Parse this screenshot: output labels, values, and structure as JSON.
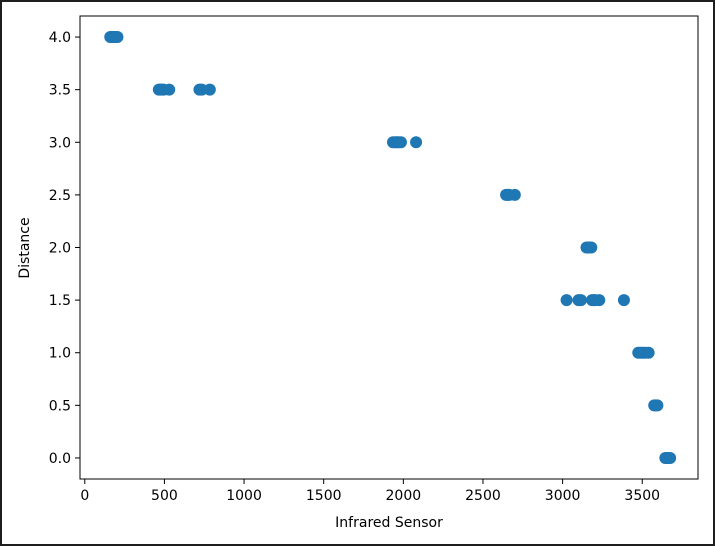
{
  "chart_data": {
    "type": "scatter",
    "title": "",
    "xlabel": "Infrared Sensor",
    "ylabel": "Distance",
    "xlim": [
      -30,
      3850
    ],
    "ylim": [
      -0.2,
      4.2
    ],
    "xticks": [
      0,
      500,
      1000,
      1500,
      2000,
      2500,
      3000,
      3500
    ],
    "yticks": [
      0.0,
      0.5,
      1.0,
      1.5,
      2.0,
      2.5,
      3.0,
      3.5,
      4.0
    ],
    "xtick_labels": [
      "0",
      "500",
      "1000",
      "1500",
      "2000",
      "2500",
      "3000",
      "3500"
    ],
    "ytick_labels": [
      "0.0",
      "0.5",
      "1.0",
      "1.5",
      "2.0",
      "2.5",
      "3.0",
      "3.5",
      "4.0"
    ],
    "grid": false,
    "marker_color": "#1f77b4",
    "series": [
      {
        "points": [
          [
            160,
            4.0
          ],
          [
            170,
            4.0
          ],
          [
            180,
            4.0
          ],
          [
            185,
            4.0
          ],
          [
            195,
            4.0
          ],
          [
            205,
            4.0
          ],
          [
            465,
            3.5
          ],
          [
            475,
            3.5
          ],
          [
            485,
            3.5
          ],
          [
            495,
            3.5
          ],
          [
            530,
            3.5
          ],
          [
            720,
            3.5
          ],
          [
            735,
            3.5
          ],
          [
            785,
            3.5
          ],
          [
            1935,
            3.0
          ],
          [
            1950,
            3.0
          ],
          [
            1960,
            3.0
          ],
          [
            1970,
            3.0
          ],
          [
            1985,
            3.0
          ],
          [
            2080,
            3.0
          ],
          [
            2645,
            2.5
          ],
          [
            2655,
            2.5
          ],
          [
            2665,
            2.5
          ],
          [
            2700,
            2.5
          ],
          [
            3150,
            2.0
          ],
          [
            3160,
            2.0
          ],
          [
            3170,
            2.0
          ],
          [
            3180,
            2.0
          ],
          [
            3025,
            1.5
          ],
          [
            3100,
            1.5
          ],
          [
            3115,
            1.5
          ],
          [
            3185,
            1.5
          ],
          [
            3195,
            1.5
          ],
          [
            3205,
            1.5
          ],
          [
            3230,
            1.5
          ],
          [
            3385,
            1.5
          ],
          [
            3475,
            1.0
          ],
          [
            3490,
            1.0
          ],
          [
            3505,
            1.0
          ],
          [
            3520,
            1.0
          ],
          [
            3540,
            1.0
          ],
          [
            3575,
            0.5
          ],
          [
            3585,
            0.5
          ],
          [
            3595,
            0.5
          ],
          [
            3645,
            0.0
          ],
          [
            3655,
            0.0
          ],
          [
            3665,
            0.0
          ],
          [
            3675,
            0.0
          ]
        ]
      }
    ]
  }
}
